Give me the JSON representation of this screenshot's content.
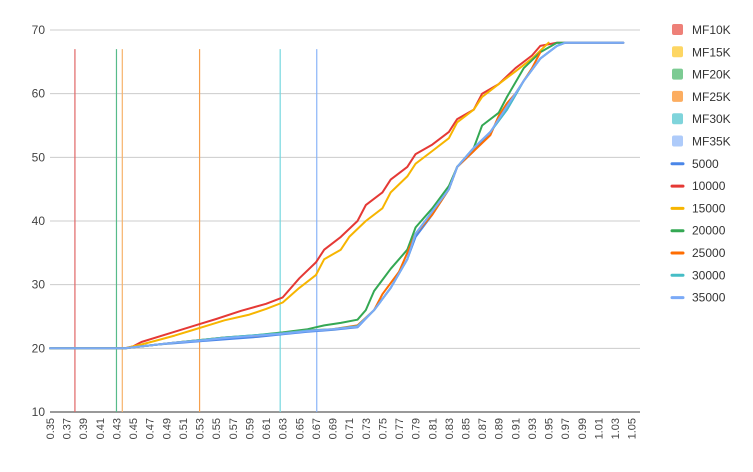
{
  "chart_data": {
    "type": "line",
    "title": "",
    "xlabel": "",
    "ylabel": "",
    "xlim": [
      0.35,
      1.06
    ],
    "ylim": [
      10,
      70
    ],
    "y_ticks": [
      10,
      20,
      30,
      40,
      50,
      60,
      70
    ],
    "x_tick_labels": [
      "0.35",
      "0.37",
      "0.39",
      "0.41",
      "0.43",
      "0.45",
      "0.47",
      "0.49",
      "0.51",
      "0.53",
      "0.55",
      "0.57",
      "0.59",
      "0.61",
      "0.63",
      "0.65",
      "0.67",
      "0.69",
      "0.71",
      "0.73",
      "0.75",
      "0.77",
      "0.79",
      "0.81",
      "0.83",
      "0.85",
      "0.87",
      "0.89",
      "0.91",
      "0.93",
      "0.95",
      "0.97",
      "0.99",
      "1.01",
      "1.03",
      "1.05"
    ],
    "grid": "horizontal",
    "legend_position": "right",
    "markers": [
      {
        "name": "MF10K",
        "x": 0.38,
        "color": "#e06666"
      },
      {
        "name": "MF15K",
        "x": 0.437,
        "color": "#f6b26b"
      },
      {
        "name": "MF20K",
        "x": 0.43,
        "color": "#57bb8a"
      },
      {
        "name": "MF25K",
        "x": 0.53,
        "color": "#f6a04d"
      },
      {
        "name": "MF30K",
        "x": 0.627,
        "color": "#76d7df"
      },
      {
        "name": "MF35K",
        "x": 0.671,
        "color": "#8ab4f8"
      }
    ],
    "legend_swatches": [
      {
        "name": "MF10K",
        "color": "#ee8078"
      },
      {
        "name": "MF15K",
        "color": "#fdd663"
      },
      {
        "name": "MF20K",
        "color": "#7ccb93"
      },
      {
        "name": "MF25K",
        "color": "#fcad60"
      },
      {
        "name": "MF30K",
        "color": "#7fd4db"
      },
      {
        "name": "MF35K",
        "color": "#aecbfa"
      }
    ],
    "series": [
      {
        "name": "5000",
        "color": "#4a86e8",
        "points": [
          [
            0.35,
            20
          ],
          [
            0.38,
            20
          ],
          [
            0.41,
            20
          ],
          [
            0.44,
            20
          ],
          [
            0.46,
            20.3
          ],
          [
            0.48,
            20.6
          ],
          [
            0.5,
            20.8
          ],
          [
            0.53,
            21.1
          ],
          [
            0.56,
            21.4
          ],
          [
            0.6,
            21.8
          ],
          [
            0.63,
            22.2
          ],
          [
            0.66,
            22.6
          ],
          [
            0.69,
            22.9
          ],
          [
            0.72,
            23.3
          ],
          [
            0.74,
            26
          ],
          [
            0.76,
            29.5
          ],
          [
            0.78,
            34
          ],
          [
            0.79,
            37.5
          ],
          [
            0.81,
            41
          ],
          [
            0.83,
            45
          ],
          [
            0.84,
            48.5
          ],
          [
            0.86,
            51
          ],
          [
            0.88,
            54
          ],
          [
            0.9,
            57.5
          ],
          [
            0.92,
            62
          ],
          [
            0.94,
            65.5
          ],
          [
            0.96,
            67.5
          ],
          [
            0.97,
            68
          ],
          [
            1.0,
            68
          ],
          [
            1.04,
            68
          ]
        ]
      },
      {
        "name": "10000",
        "color": "#e53935",
        "points": [
          [
            0.35,
            20
          ],
          [
            0.38,
            20
          ],
          [
            0.41,
            20
          ],
          [
            0.44,
            20
          ],
          [
            0.45,
            20.3
          ],
          [
            0.46,
            21
          ],
          [
            0.49,
            22.2
          ],
          [
            0.51,
            23
          ],
          [
            0.53,
            23.8
          ],
          [
            0.55,
            24.6
          ],
          [
            0.58,
            25.9
          ],
          [
            0.61,
            27
          ],
          [
            0.63,
            28
          ],
          [
            0.65,
            31
          ],
          [
            0.67,
            33.5
          ],
          [
            0.68,
            35.5
          ],
          [
            0.7,
            37.5
          ],
          [
            0.72,
            40
          ],
          [
            0.73,
            42.5
          ],
          [
            0.75,
            44.5
          ],
          [
            0.76,
            46.5
          ],
          [
            0.78,
            48.5
          ],
          [
            0.79,
            50.5
          ],
          [
            0.81,
            52
          ],
          [
            0.83,
            54
          ],
          [
            0.84,
            56
          ],
          [
            0.86,
            57.5
          ],
          [
            0.87,
            60
          ],
          [
            0.89,
            61.5
          ],
          [
            0.91,
            64
          ],
          [
            0.93,
            66
          ],
          [
            0.94,
            67.5
          ],
          [
            0.96,
            68
          ],
          [
            0.97,
            68
          ],
          [
            1.0,
            68
          ],
          [
            1.04,
            68
          ]
        ]
      },
      {
        "name": "15000",
        "color": "#f7b500",
        "points": [
          [
            0.35,
            20
          ],
          [
            0.38,
            20
          ],
          [
            0.41,
            20
          ],
          [
            0.44,
            20
          ],
          [
            0.46,
            20.6
          ],
          [
            0.48,
            21.3
          ],
          [
            0.5,
            22
          ],
          [
            0.52,
            22.8
          ],
          [
            0.54,
            23.6
          ],
          [
            0.56,
            24.4
          ],
          [
            0.59,
            25.3
          ],
          [
            0.61,
            26.2
          ],
          [
            0.63,
            27.2
          ],
          [
            0.65,
            29.5
          ],
          [
            0.67,
            31.5
          ],
          [
            0.68,
            34
          ],
          [
            0.7,
            35.5
          ],
          [
            0.71,
            37.5
          ],
          [
            0.73,
            40
          ],
          [
            0.75,
            42
          ],
          [
            0.76,
            44.5
          ],
          [
            0.78,
            47
          ],
          [
            0.79,
            49
          ],
          [
            0.81,
            51
          ],
          [
            0.83,
            53
          ],
          [
            0.84,
            55.5
          ],
          [
            0.86,
            57.5
          ],
          [
            0.87,
            59.5
          ],
          [
            0.89,
            61.5
          ],
          [
            0.91,
            63.5
          ],
          [
            0.93,
            65.5
          ],
          [
            0.95,
            68
          ]
        ]
      },
      {
        "name": "20000",
        "color": "#34a853",
        "points": [
          [
            0.35,
            20
          ],
          [
            0.38,
            20
          ],
          [
            0.41,
            20
          ],
          [
            0.44,
            20
          ],
          [
            0.46,
            20.3
          ],
          [
            0.48,
            20.6
          ],
          [
            0.5,
            20.9
          ],
          [
            0.53,
            21.3
          ],
          [
            0.56,
            21.7
          ],
          [
            0.6,
            22.1
          ],
          [
            0.63,
            22.5
          ],
          [
            0.66,
            23
          ],
          [
            0.68,
            23.6
          ],
          [
            0.7,
            24
          ],
          [
            0.72,
            24.5
          ],
          [
            0.73,
            26
          ],
          [
            0.74,
            29
          ],
          [
            0.76,
            32.5
          ],
          [
            0.78,
            35.5
          ],
          [
            0.79,
            39
          ],
          [
            0.81,
            42
          ],
          [
            0.83,
            45.5
          ],
          [
            0.84,
            48.5
          ],
          [
            0.86,
            51.5
          ],
          [
            0.87,
            55
          ],
          [
            0.89,
            57
          ],
          [
            0.9,
            59.5
          ],
          [
            0.92,
            64
          ],
          [
            0.94,
            66.5
          ],
          [
            0.96,
            68
          ],
          [
            0.97,
            68
          ]
        ]
      },
      {
        "name": "25000",
        "color": "#ff6d01",
        "points": [
          [
            0.35,
            20
          ],
          [
            0.38,
            20
          ],
          [
            0.41,
            20
          ],
          [
            0.44,
            20
          ],
          [
            0.46,
            20.3
          ],
          [
            0.48,
            20.6
          ],
          [
            0.5,
            20.9
          ],
          [
            0.53,
            21.3
          ],
          [
            0.56,
            21.7
          ],
          [
            0.6,
            22
          ],
          [
            0.63,
            22.4
          ],
          [
            0.66,
            22.8
          ],
          [
            0.69,
            23
          ],
          [
            0.72,
            23.6
          ],
          [
            0.74,
            26
          ],
          [
            0.75,
            28.5
          ],
          [
            0.77,
            32
          ],
          [
            0.78,
            35
          ],
          [
            0.79,
            38
          ],
          [
            0.81,
            41
          ],
          [
            0.83,
            45
          ],
          [
            0.84,
            48.5
          ],
          [
            0.86,
            51
          ],
          [
            0.88,
            53.5
          ],
          [
            0.89,
            56.5
          ],
          [
            0.9,
            58.5
          ],
          [
            0.91,
            60
          ],
          [
            0.93,
            64
          ],
          [
            0.94,
            66.5
          ]
        ]
      },
      {
        "name": "30000",
        "color": "#46bdc6",
        "points": [
          [
            0.35,
            20
          ],
          [
            0.38,
            20
          ],
          [
            0.41,
            20
          ],
          [
            0.44,
            20
          ],
          [
            0.46,
            20.3
          ],
          [
            0.48,
            20.6
          ],
          [
            0.5,
            20.9
          ],
          [
            0.53,
            21.3
          ],
          [
            0.56,
            21.7
          ],
          [
            0.6,
            22.1
          ],
          [
            0.63,
            22.4
          ],
          [
            0.66,
            22.8
          ],
          [
            0.69,
            23
          ],
          [
            0.72,
            23.5
          ],
          [
            0.74,
            26
          ],
          [
            0.76,
            29.5
          ],
          [
            0.78,
            34
          ],
          [
            0.79,
            38
          ],
          [
            0.81,
            41.5
          ],
          [
            0.83,
            45
          ],
          [
            0.84,
            48.5
          ],
          [
            0.86,
            51.5
          ],
          [
            0.88,
            54
          ],
          [
            0.9,
            57.5
          ],
          [
            0.92,
            62
          ],
          [
            0.94,
            65.5
          ],
          [
            0.96,
            67.5
          ],
          [
            0.97,
            68
          ],
          [
            1.0,
            68
          ],
          [
            1.04,
            68
          ]
        ]
      },
      {
        "name": "35000",
        "color": "#7baaf7",
        "points": [
          [
            0.35,
            20
          ],
          [
            0.38,
            20
          ],
          [
            0.41,
            20
          ],
          [
            0.44,
            20
          ],
          [
            0.46,
            20.3
          ],
          [
            0.48,
            20.6
          ],
          [
            0.5,
            20.9
          ],
          [
            0.53,
            21.2
          ],
          [
            0.56,
            21.6
          ],
          [
            0.6,
            22
          ],
          [
            0.63,
            22.3
          ],
          [
            0.66,
            22.7
          ],
          [
            0.69,
            23
          ],
          [
            0.72,
            23.4
          ],
          [
            0.74,
            26
          ],
          [
            0.76,
            29.5
          ],
          [
            0.78,
            34
          ],
          [
            0.79,
            38
          ],
          [
            0.81,
            41.5
          ],
          [
            0.83,
            45
          ],
          [
            0.84,
            48.5
          ],
          [
            0.86,
            51.5
          ],
          [
            0.88,
            54
          ],
          [
            0.9,
            58
          ],
          [
            0.92,
            62
          ],
          [
            0.94,
            65.5
          ],
          [
            0.96,
            67.5
          ],
          [
            0.97,
            68
          ],
          [
            1.0,
            68
          ],
          [
            1.04,
            68
          ]
        ]
      }
    ]
  }
}
